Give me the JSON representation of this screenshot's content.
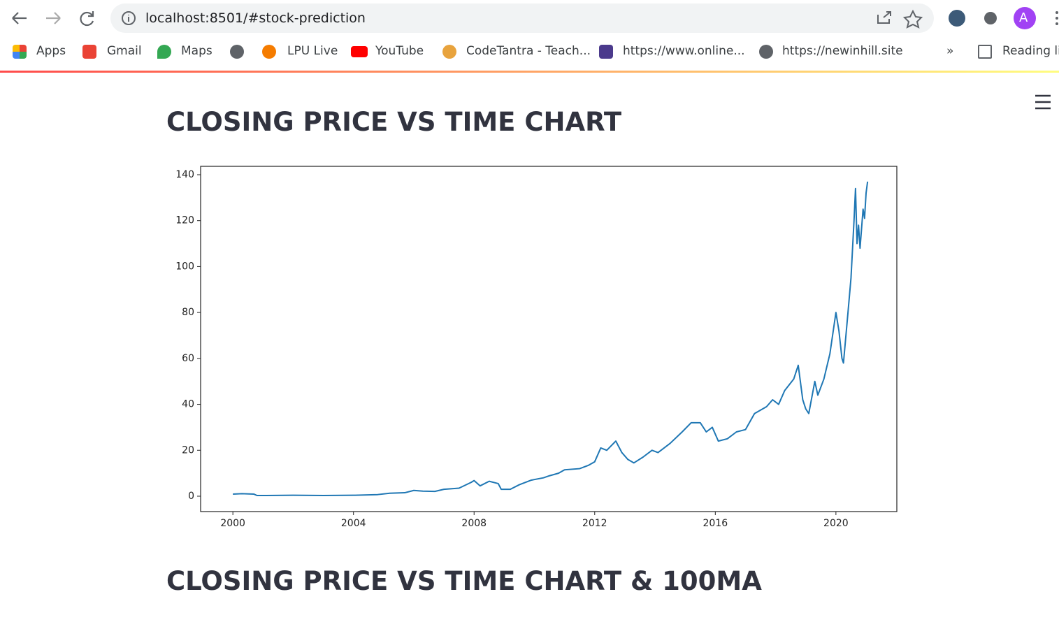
{
  "browser": {
    "url": "localhost:8501/#stock-prediction",
    "profile": "A",
    "bookmarks": [
      "Apps",
      "Gmail",
      "Maps",
      "LPU Live",
      "YouTube",
      "CodeTantra - Teach...",
      "https://www.online...",
      "https://newinhill.site"
    ],
    "overflow": "»",
    "reading_list": "Reading list"
  },
  "page": {
    "headings": [
      "CLOSING PRICE VS TIME CHART",
      "CLOSING PRICE VS TIME CHART & 100MA"
    ]
  },
  "chart_data": {
    "type": "line",
    "color": "#1f77b4",
    "grid": false,
    "x": [
      2000.0,
      2000.3,
      2000.7,
      2000.8,
      2001.0,
      2002.0,
      2003.0,
      2004.0,
      2004.8,
      2005.2,
      2005.7,
      2006.0,
      2006.3,
      2006.7,
      2007.0,
      2007.5,
      2007.9,
      2008.0,
      2008.2,
      2008.5,
      2008.8,
      2008.9,
      2009.2,
      2009.5,
      2009.9,
      2010.3,
      2010.5,
      2010.8,
      2011.0,
      2011.5,
      2011.8,
      2012.0,
      2012.2,
      2012.4,
      2012.7,
      2012.9,
      2013.1,
      2013.3,
      2013.6,
      2013.9,
      2014.1,
      2014.5,
      2014.9,
      2015.2,
      2015.5,
      2015.7,
      2015.9,
      2016.1,
      2016.4,
      2016.7,
      2017.0,
      2017.3,
      2017.7,
      2017.9,
      2018.1,
      2018.3,
      2018.6,
      2018.75,
      2018.9,
      2019.0,
      2019.1,
      2019.3,
      2019.4,
      2019.6,
      2019.8,
      2020.0,
      2020.1,
      2020.2,
      2020.25,
      2020.4,
      2020.5,
      2020.6,
      2020.65,
      2020.7,
      2020.75,
      2020.8,
      2020.9,
      2020.95,
      2021.0,
      2021.05
    ],
    "values": [
      0.9,
      1.1,
      0.9,
      0.3,
      0.3,
      0.4,
      0.3,
      0.4,
      0.7,
      1.3,
      1.5,
      2.5,
      2.2,
      2.1,
      3.0,
      3.5,
      6.0,
      6.8,
      4.5,
      6.5,
      5.5,
      3.0,
      3.0,
      5,
      7,
      8,
      8.9,
      10,
      11.5,
      12,
      13.5,
      15,
      21,
      20,
      24,
      19,
      16,
      14.5,
      17,
      20,
      19,
      23,
      28,
      32,
      32,
      28,
      30,
      24,
      25,
      28,
      29,
      36,
      39,
      42,
      40,
      46,
      51,
      57,
      42,
      38,
      36,
      50,
      44,
      51,
      62,
      80,
      72,
      60,
      58,
      80,
      95,
      120,
      134,
      110,
      118,
      108,
      125,
      121,
      132,
      137
    ],
    "xlim": [
      1998.93,
      2022.02
    ],
    "ylim": [
      -6.7,
      143.65
    ],
    "xticks": [
      2000,
      2004,
      2008,
      2012,
      2016,
      2020
    ],
    "yticks": [
      0,
      20,
      40,
      60,
      80,
      100,
      120,
      140
    ]
  }
}
